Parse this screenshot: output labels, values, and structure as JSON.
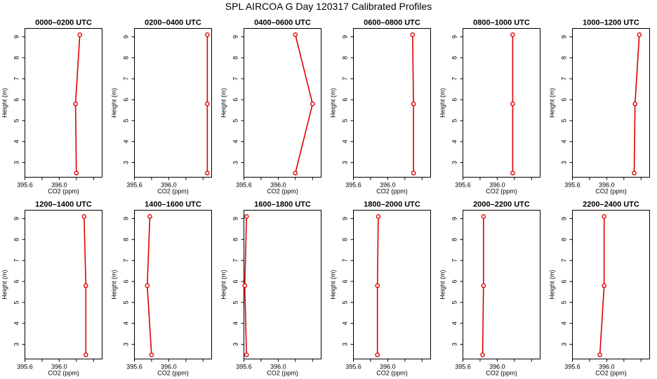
{
  "title": "SPL AIRCOA G  Day 120317  Calibrated Profiles",
  "chart_data": {
    "type": "line",
    "xlabel": "CO2 (ppm)",
    "ylabel": "Height (m)",
    "xlim": [
      395.6,
      396.5
    ],
    "ylim": [
      2.3,
      9.4
    ],
    "x_ticks": [
      395.6,
      395.8,
      396.0,
      396.2,
      396.4
    ],
    "x_tick_labels": [
      "395.6",
      "",
      "396.0",
      "",
      ""
    ],
    "y_ticks": [
      3,
      4,
      5,
      6,
      7,
      8,
      9
    ],
    "y_tick_labels": [
      "3",
      "4",
      "5",
      "6",
      "7",
      "8",
      "9"
    ],
    "grid": false,
    "line_color": "#dd0000",
    "marker": "open-circle",
    "heights": [
      2.5,
      5.8,
      9.1
    ],
    "panels": [
      {
        "title": "0000–0200 UTC",
        "co2": [
          396.2,
          396.19,
          396.24
        ]
      },
      {
        "title": "0200–0400 UTC",
        "co2": [
          396.45,
          396.45,
          396.45
        ]
      },
      {
        "title": "0400–0600 UTC",
        "co2": [
          396.2,
          396.4,
          396.2
        ]
      },
      {
        "title": "0600–0800 UTC",
        "co2": [
          396.3,
          396.3,
          396.29
        ]
      },
      {
        "title": "0800–1000 UTC",
        "co2": [
          396.18,
          396.18,
          396.18
        ]
      },
      {
        "title": "1000–1200 UTC",
        "co2": [
          396.32,
          396.33,
          396.38
        ]
      },
      {
        "title": "1200–1400 UTC",
        "co2": [
          396.31,
          396.31,
          396.29
        ]
      },
      {
        "title": "1400–1600 UTC",
        "co2": [
          395.8,
          395.75,
          395.78
        ]
      },
      {
        "title": "1600–1800 UTC",
        "co2": [
          395.63,
          395.61,
          395.63
        ]
      },
      {
        "title": "1800–2000 UTC",
        "co2": [
          395.88,
          395.88,
          395.89
        ]
      },
      {
        "title": "2000–2200 UTC",
        "co2": [
          395.83,
          395.84,
          395.84
        ]
      },
      {
        "title": "2200–2400 UTC",
        "co2": [
          395.92,
          395.97,
          395.97
        ]
      }
    ]
  }
}
